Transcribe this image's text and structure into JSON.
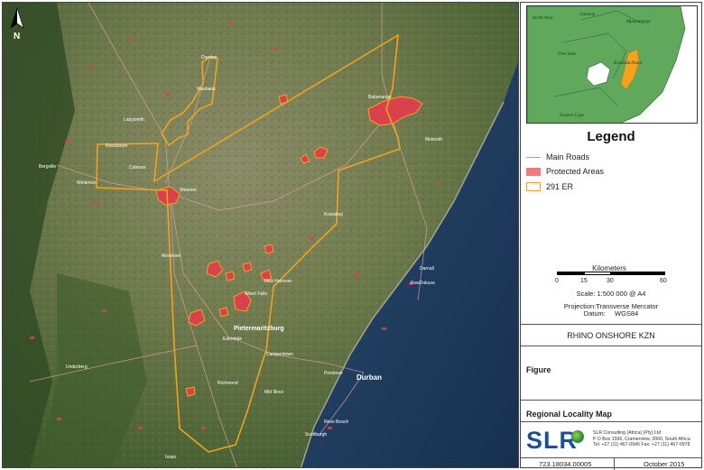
{
  "north_arrow": {
    "letter": "N"
  },
  "map_labels": {
    "dundee": "Dundee",
    "wasbank": "Wasbank",
    "ladysmith": "Ladysmith",
    "roosboom": "Roosboom",
    "colenso": "Colenso",
    "winterton": "Winterton",
    "weenen": "Weenen",
    "bergville": "Bergville",
    "babanango": "Babanango",
    "melmoth": "Melmoth",
    "kranskop": "Kranskop",
    "mooiriver": "Mooirivier",
    "new_hanover": "New Hanover",
    "albert_falls": "Albert Falls",
    "pietermaritzburg": "Pietermaritzburg",
    "edendale": "Edendale",
    "camperdown": "Camperdown",
    "pinetown": "Pinetown",
    "durban": "Durban",
    "richmond": "Richmond",
    "umbumbulu": "Mid Illovo",
    "darnall": "Darnall",
    "kwadukuza": "KwaDukuza",
    "underberg": "Underberg",
    "ixopo": "Ixopo",
    "scottburgh": "Scottburgh",
    "umkomaas": "Illovo Beach"
  },
  "inset_labels": {
    "north_west": "North West",
    "gauteng": "Gauteng",
    "mpumalanga": "Mpumalanga",
    "free_state": "Free State",
    "kzn": "KwaZulu-Natal",
    "eastern_cape": "Eastern Cape"
  },
  "legend": {
    "title": "Legend",
    "items": [
      {
        "label": "Main Roads",
        "color": "#d98a8a",
        "kind": "line"
      },
      {
        "label": "Protected Areas",
        "color": "#ef7a7f",
        "kind": "fill"
      },
      {
        "label": "291 ER",
        "color": "#f2a21f",
        "kind": "outline"
      }
    ]
  },
  "scale": {
    "title": "Kilometers",
    "ticks": [
      "0",
      "15",
      "30",
      "60"
    ],
    "scale_text": "Scale: 1:500 000 @ A4",
    "projection": "Projection:Transverse Mercator",
    "datum_label": "Datum:",
    "datum": "WGS84"
  },
  "project": "RHINO ONSHORE KZN",
  "figure_label": "Figure",
  "figure_title": "Regional Locality Map",
  "logo_text": "SLR",
  "company": {
    "name": "SLR Consulting (Africa) (Pty) Ltd",
    "address": "P O Box 1596, Cramerview, 2060, South Africa",
    "phone": "Tel: +27 (11) 467-0945  Fax: +27 (11) 467-0978"
  },
  "doc_number": "723.18034.00005",
  "date": "October 2015",
  "colors": {
    "land_dark": "#3f5a2e",
    "land_light": "#8a8c6a",
    "ocean": "#1f3b5e",
    "study_area": "#f2a21f",
    "protected": "#d9424d",
    "inset_green": "#5fa85c"
  }
}
